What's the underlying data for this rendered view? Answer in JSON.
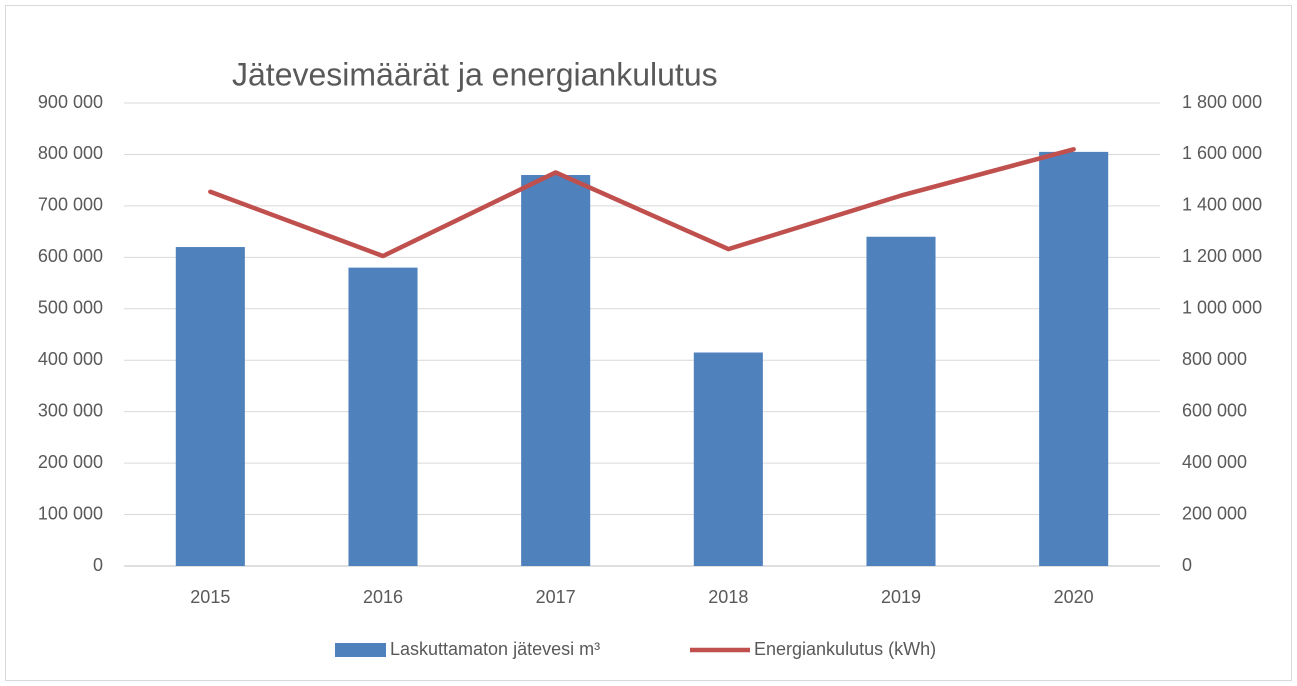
{
  "chart_data": {
    "type": "bar_line",
    "title": "Jätevesimäärät ja energiankulutus",
    "categories": [
      "2015",
      "2016",
      "2017",
      "2018",
      "2019",
      "2020"
    ],
    "series": [
      {
        "name": "Laskuttamaton jätevesi m³",
        "type": "bar",
        "color": "#4f81bd",
        "values": [
          620000,
          580000,
          760000,
          415000,
          640000,
          805000
        ]
      },
      {
        "name": "Energiankulutus (kWh)",
        "type": "line",
        "axis": "y2",
        "color": "#c0504d",
        "values": [
          1455000,
          1205000,
          1530000,
          1232000,
          1440000,
          1620000
        ]
      }
    ],
    "ylim": [
      0,
      900000
    ],
    "yticks": [
      0,
      {
        "value": 100000,
        "label": "100 000"
      },
      {
        "value": 200000,
        "label": "200 000"
      },
      {
        "value": 300000,
        "label": "300 000"
      },
      {
        "value": 400000,
        "label": "400 000"
      },
      {
        "value": 500000,
        "label": "500 000"
      },
      {
        "value": 600000,
        "label": "600 000"
      },
      {
        "value": 700000,
        "label": "700 000"
      },
      {
        "value": 800000,
        "label": "800 000"
      },
      {
        "value": 900000,
        "label": "900 000"
      }
    ],
    "y2lim": [
      0,
      1800000
    ],
    "y2ticks": [
      0,
      {
        "value": 200000,
        "label": "200 000"
      },
      {
        "value": 400000,
        "label": "400 000"
      },
      {
        "value": 600000,
        "label": "600 000"
      },
      {
        "value": 800000,
        "label": "800 000"
      },
      {
        "value": 1000000,
        "label": "1 000 000"
      },
      {
        "value": 1200000,
        "label": "1 200 000"
      },
      {
        "value": 1400000,
        "label": "1 400 000"
      },
      {
        "value": 1600000,
        "label": "1 600 000"
      },
      {
        "value": 1800000,
        "label": "1 800 000"
      }
    ],
    "grid": true,
    "legend": "bottom"
  }
}
